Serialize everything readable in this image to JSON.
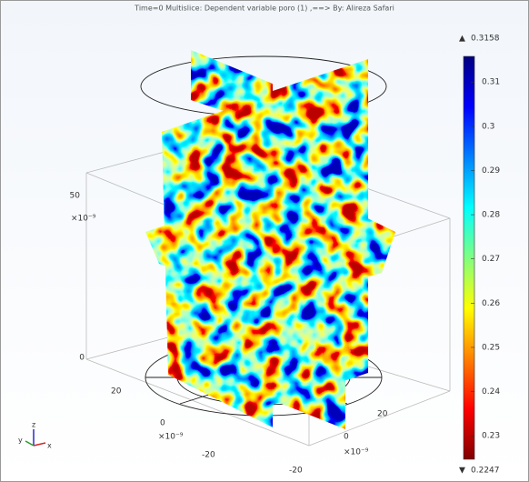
{
  "chart_data": {
    "type": "multislice",
    "title": "Time=0  Multislice: Dependent variable poro (1) ,==> By: Alireza Safari",
    "clim": [
      0.2247,
      0.3158
    ],
    "cticks": [
      0.31,
      0.3,
      0.29,
      0.28,
      0.27,
      0.26,
      0.25,
      0.24,
      0.23
    ],
    "zticks": [
      0,
      50
    ],
    "xticks": [
      -20,
      0,
      20
    ],
    "yticks": [
      -20,
      0,
      20
    ],
    "axis_exponent": "×10⁻⁹",
    "triad": [
      "z",
      "y",
      "x"
    ]
  }
}
